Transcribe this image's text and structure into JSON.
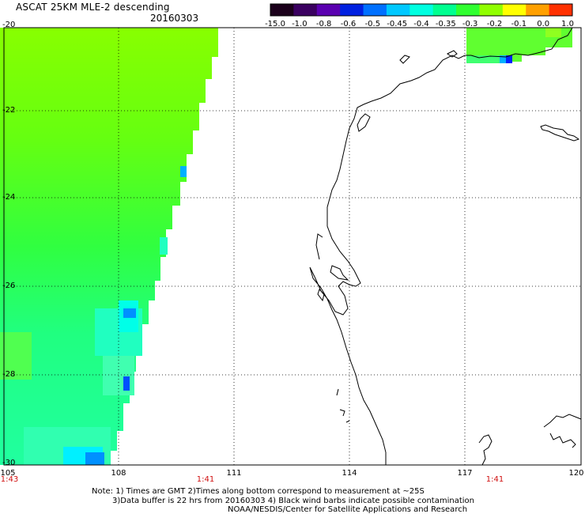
{
  "header": {
    "title": "ASCAT 25KM MLE-2 descending",
    "date": "20160303"
  },
  "colorbar": {
    "labels": [
      "-15.0",
      "-1.0",
      "-0.8",
      "-0.6",
      "-0.5",
      "-0.45",
      "-0.4",
      "-0.35",
      "-0.3",
      "-0.2",
      "-0.1",
      "0.0",
      "1.0"
    ],
    "colors": [
      "#1a001a",
      "#3a0060",
      "#5a00b0",
      "#0020e0",
      "#0070ff",
      "#00c8ff",
      "#00ffe0",
      "#00ff90",
      "#30ff30",
      "#90ff00",
      "#ffff00",
      "#ffa000",
      "#ff3000"
    ]
  },
  "axes": {
    "lat_ticks": [
      "-20",
      "-22",
      "-24",
      "-26",
      "-28",
      "-30"
    ],
    "lon_ticks": [
      "105",
      "108",
      "111",
      "114",
      "117",
      "120"
    ],
    "time_labels": [
      "1:43",
      "1:41",
      "1:41"
    ]
  },
  "notes": {
    "line1": "Note: 1) Times are GMT 2)Times along bottom correspond to measurement at ~25S",
    "line2": "3)Data buffer is 22 hrs from 20160303 4) Black wind barbs indicate possible contamination",
    "line3": "NOAA/NESDIS/Center for Satellite Applications and Research"
  }
}
